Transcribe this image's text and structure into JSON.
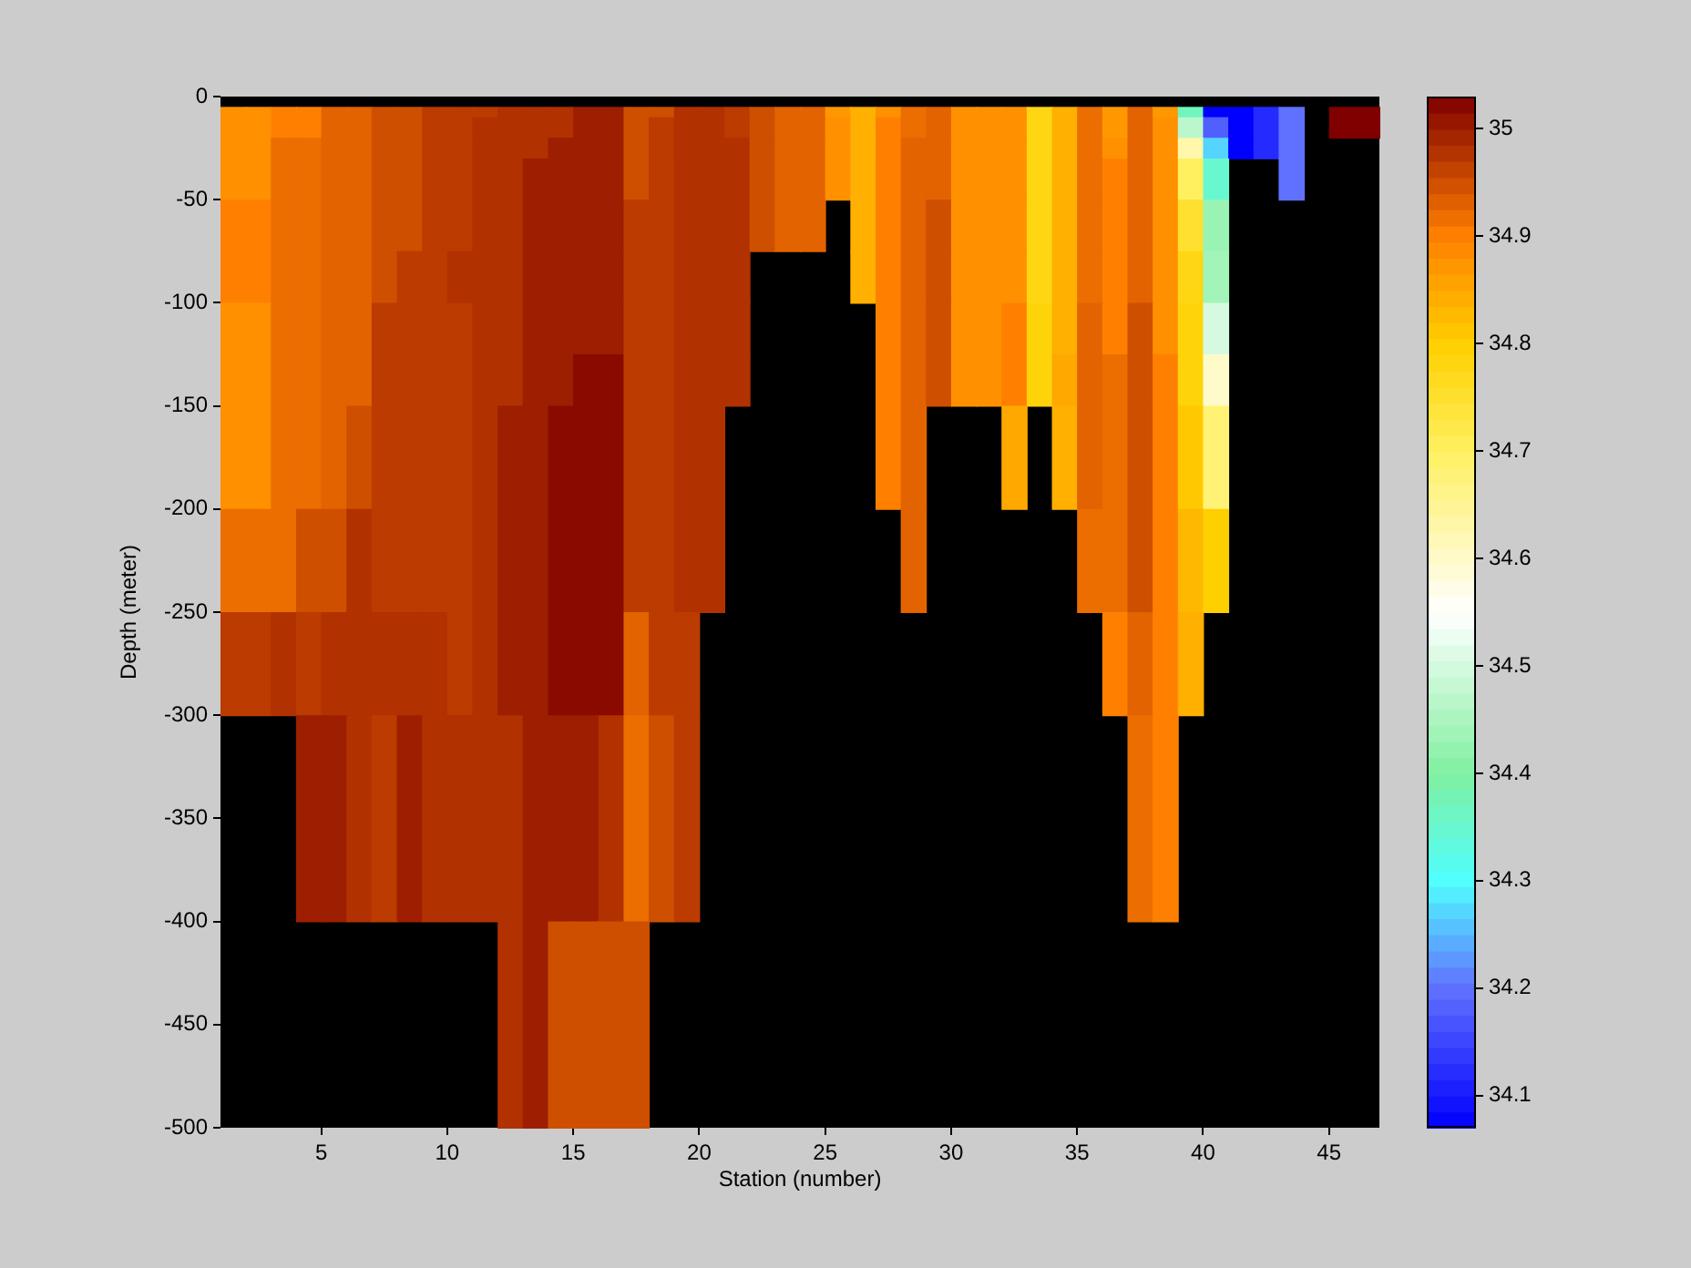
{
  "chart_data": {
    "type": "heatmap",
    "xlabel": "Station (number)",
    "ylabel": "Depth (meter)",
    "x": [
      1.5,
      2.5,
      3.5,
      4.5,
      5.5,
      6.5,
      7.5,
      8.5,
      9.5,
      10.5,
      11.5,
      12.5,
      13.5,
      14.5,
      15.5,
      16.5,
      17.5,
      18.5,
      19.5,
      20.5,
      21.5,
      22.5,
      23.5,
      24.5,
      25.5,
      26.5,
      27.5,
      28.5,
      29.5,
      30.5,
      31.5,
      32.5,
      33.5,
      34.5,
      35.5,
      36.5,
      37.5,
      38.5,
      39.5,
      40.5,
      41.5,
      42.5,
      43.5,
      44.5,
      45.5,
      46.5
    ],
    "y": [
      -7.5,
      -15,
      -25,
      -40,
      -62.5,
      -87.5,
      -112.5,
      -137.5,
      -175,
      -225,
      -275,
      -350,
      -450
    ],
    "xlim": [
      1,
      47
    ],
    "ylim": [
      -500,
      0
    ],
    "xticks": [
      5,
      10,
      15,
      20,
      25,
      30,
      35,
      40,
      45
    ],
    "yticks": [
      -500,
      -450,
      -400,
      -350,
      -300,
      -250,
      -200,
      -150,
      -100,
      -50,
      0
    ],
    "clim": [
      34.07,
      35.03
    ],
    "cticks": [
      34.1,
      34.2,
      34.3,
      34.4,
      34.5,
      34.6,
      34.7,
      34.8,
      34.9,
      35
    ],
    "cells": [
      [
        34.88,
        34.88,
        34.9,
        34.9,
        34.93,
        34.93,
        34.95,
        34.95,
        34.97,
        34.97,
        34.97,
        34.98,
        34.98,
        34.98,
        35.0,
        35.0,
        34.95,
        34.95,
        34.98,
        34.98,
        34.97,
        34.95,
        34.93,
        34.93,
        34.87,
        34.84,
        34.88,
        34.92,
        34.93,
        34.88,
        34.88,
        34.88,
        34.78,
        34.84,
        34.92,
        34.87,
        34.93,
        34.87,
        34.37,
        34.07,
        34.07,
        34.12,
        34.2,
        null,
        35.03,
        35.03
      ],
      [
        34.88,
        34.88,
        34.9,
        34.9,
        34.93,
        34.93,
        34.95,
        34.95,
        34.97,
        34.97,
        34.98,
        34.98,
        34.98,
        34.98,
        35.0,
        35.0,
        34.95,
        34.97,
        34.98,
        34.98,
        34.97,
        34.95,
        34.93,
        34.93,
        34.88,
        34.84,
        34.9,
        34.92,
        34.93,
        34.88,
        34.88,
        34.88,
        34.78,
        34.84,
        34.92,
        34.87,
        34.93,
        34.88,
        34.47,
        34.18,
        34.07,
        34.12,
        34.2,
        null,
        35.03,
        35.03
      ],
      [
        34.88,
        34.88,
        34.92,
        34.92,
        34.93,
        34.93,
        34.95,
        34.95,
        34.97,
        34.97,
        34.98,
        34.98,
        34.98,
        35.0,
        35.0,
        35.0,
        34.95,
        34.97,
        34.98,
        34.98,
        34.98,
        34.95,
        34.93,
        34.93,
        34.88,
        34.84,
        34.9,
        34.93,
        34.93,
        34.88,
        34.88,
        34.88,
        34.78,
        34.84,
        34.92,
        34.88,
        34.93,
        34.88,
        34.63,
        34.27,
        34.07,
        34.12,
        34.2,
        null,
        null,
        null
      ],
      [
        34.88,
        34.88,
        34.92,
        34.92,
        34.93,
        34.93,
        34.95,
        34.95,
        34.97,
        34.97,
        34.98,
        34.98,
        35.0,
        35.0,
        35.0,
        35.0,
        34.95,
        34.97,
        34.98,
        34.98,
        34.98,
        34.95,
        34.93,
        34.93,
        34.88,
        34.84,
        34.9,
        34.93,
        34.93,
        34.88,
        34.88,
        34.88,
        34.78,
        34.84,
        34.92,
        34.9,
        34.93,
        34.88,
        34.7,
        34.35,
        null,
        null,
        34.2,
        null,
        null,
        null
      ],
      [
        34.9,
        34.9,
        34.92,
        34.92,
        34.93,
        34.93,
        34.95,
        34.95,
        34.97,
        34.97,
        34.98,
        34.98,
        35.0,
        35.0,
        35.0,
        35.0,
        34.97,
        34.97,
        34.98,
        34.98,
        34.98,
        34.95,
        34.93,
        34.93,
        null,
        34.84,
        34.9,
        34.93,
        34.95,
        34.88,
        34.88,
        34.88,
        34.78,
        34.84,
        34.92,
        34.9,
        34.93,
        34.88,
        34.75,
        34.43,
        null,
        null,
        null,
        null,
        null,
        null
      ],
      [
        34.9,
        34.9,
        34.92,
        34.92,
        34.93,
        34.93,
        34.95,
        34.97,
        34.97,
        34.98,
        34.98,
        34.98,
        35.0,
        35.0,
        35.0,
        35.0,
        34.97,
        34.97,
        34.98,
        34.98,
        34.98,
        null,
        null,
        null,
        null,
        34.84,
        34.9,
        34.93,
        34.95,
        34.88,
        34.88,
        34.88,
        34.78,
        34.84,
        34.92,
        34.9,
        34.93,
        34.88,
        34.78,
        34.44,
        null,
        null,
        null,
        null,
        null,
        null
      ],
      [
        34.88,
        34.88,
        34.92,
        34.92,
        34.93,
        34.93,
        34.97,
        34.97,
        34.97,
        34.97,
        34.98,
        34.98,
        35.0,
        35.0,
        35.0,
        35.0,
        34.97,
        34.97,
        34.98,
        34.98,
        34.98,
        null,
        null,
        null,
        null,
        null,
        34.9,
        34.93,
        34.95,
        34.88,
        34.88,
        34.9,
        34.79,
        34.84,
        34.93,
        34.9,
        34.95,
        34.88,
        34.79,
        34.5,
        null,
        null,
        null,
        null,
        null,
        null
      ],
      [
        34.88,
        34.88,
        34.92,
        34.92,
        34.93,
        34.93,
        34.97,
        34.97,
        34.97,
        34.97,
        34.98,
        34.98,
        35.0,
        35.0,
        35.02,
        35.02,
        34.97,
        34.97,
        34.98,
        34.98,
        34.98,
        null,
        null,
        null,
        null,
        null,
        34.9,
        34.93,
        34.95,
        34.88,
        34.88,
        34.9,
        34.79,
        34.85,
        34.93,
        34.92,
        34.95,
        34.9,
        34.79,
        34.6,
        null,
        null,
        null,
        null,
        null,
        null
      ],
      [
        34.88,
        34.88,
        34.92,
        34.92,
        34.93,
        34.95,
        34.97,
        34.97,
        34.97,
        34.97,
        34.98,
        35.0,
        35.0,
        35.02,
        35.02,
        35.02,
        34.97,
        34.97,
        34.98,
        34.98,
        null,
        null,
        null,
        null,
        null,
        null,
        34.9,
        34.93,
        null,
        null,
        null,
        34.85,
        null,
        34.84,
        34.93,
        34.92,
        34.95,
        34.9,
        34.81,
        34.68,
        null,
        null,
        null,
        null,
        null,
        null
      ],
      [
        34.92,
        34.92,
        34.92,
        34.95,
        34.95,
        34.98,
        34.97,
        34.97,
        34.97,
        34.97,
        34.98,
        35.0,
        35.0,
        35.02,
        35.02,
        35.02,
        34.97,
        34.97,
        34.98,
        34.98,
        null,
        null,
        null,
        null,
        null,
        null,
        null,
        34.93,
        null,
        null,
        null,
        null,
        null,
        null,
        34.92,
        34.92,
        34.95,
        34.9,
        34.83,
        34.8,
        null,
        null,
        null,
        null,
        null,
        null
      ],
      [
        34.97,
        34.97,
        34.98,
        34.97,
        34.98,
        34.98,
        34.98,
        34.98,
        34.98,
        34.97,
        34.98,
        35.0,
        35.0,
        35.02,
        35.02,
        35.02,
        34.93,
        34.97,
        34.97,
        null,
        null,
        null,
        null,
        null,
        null,
        null,
        null,
        null,
        null,
        null,
        null,
        null,
        null,
        null,
        null,
        34.9,
        34.93,
        34.9,
        34.84,
        null,
        null,
        null,
        null,
        null,
        null,
        null
      ],
      [
        null,
        null,
        null,
        35.0,
        35.0,
        34.98,
        34.97,
        35.0,
        34.98,
        34.98,
        34.98,
        34.98,
        35.0,
        35.0,
        35.0,
        34.98,
        34.92,
        34.95,
        34.97,
        null,
        null,
        null,
        null,
        null,
        null,
        null,
        null,
        null,
        null,
        null,
        null,
        null,
        null,
        null,
        null,
        null,
        34.92,
        34.9,
        null,
        null,
        null,
        null,
        null,
        null,
        null,
        null
      ],
      [
        null,
        null,
        null,
        null,
        null,
        null,
        null,
        null,
        null,
        null,
        null,
        34.98,
        35.0,
        34.95,
        34.95,
        34.95,
        34.95,
        null,
        null,
        null,
        null,
        null,
        null,
        null,
        null,
        null,
        null,
        null,
        null,
        null,
        null,
        null,
        null,
        null,
        null,
        null,
        null,
        null,
        null,
        null,
        null,
        null,
        null,
        null,
        null,
        null
      ]
    ]
  }
}
